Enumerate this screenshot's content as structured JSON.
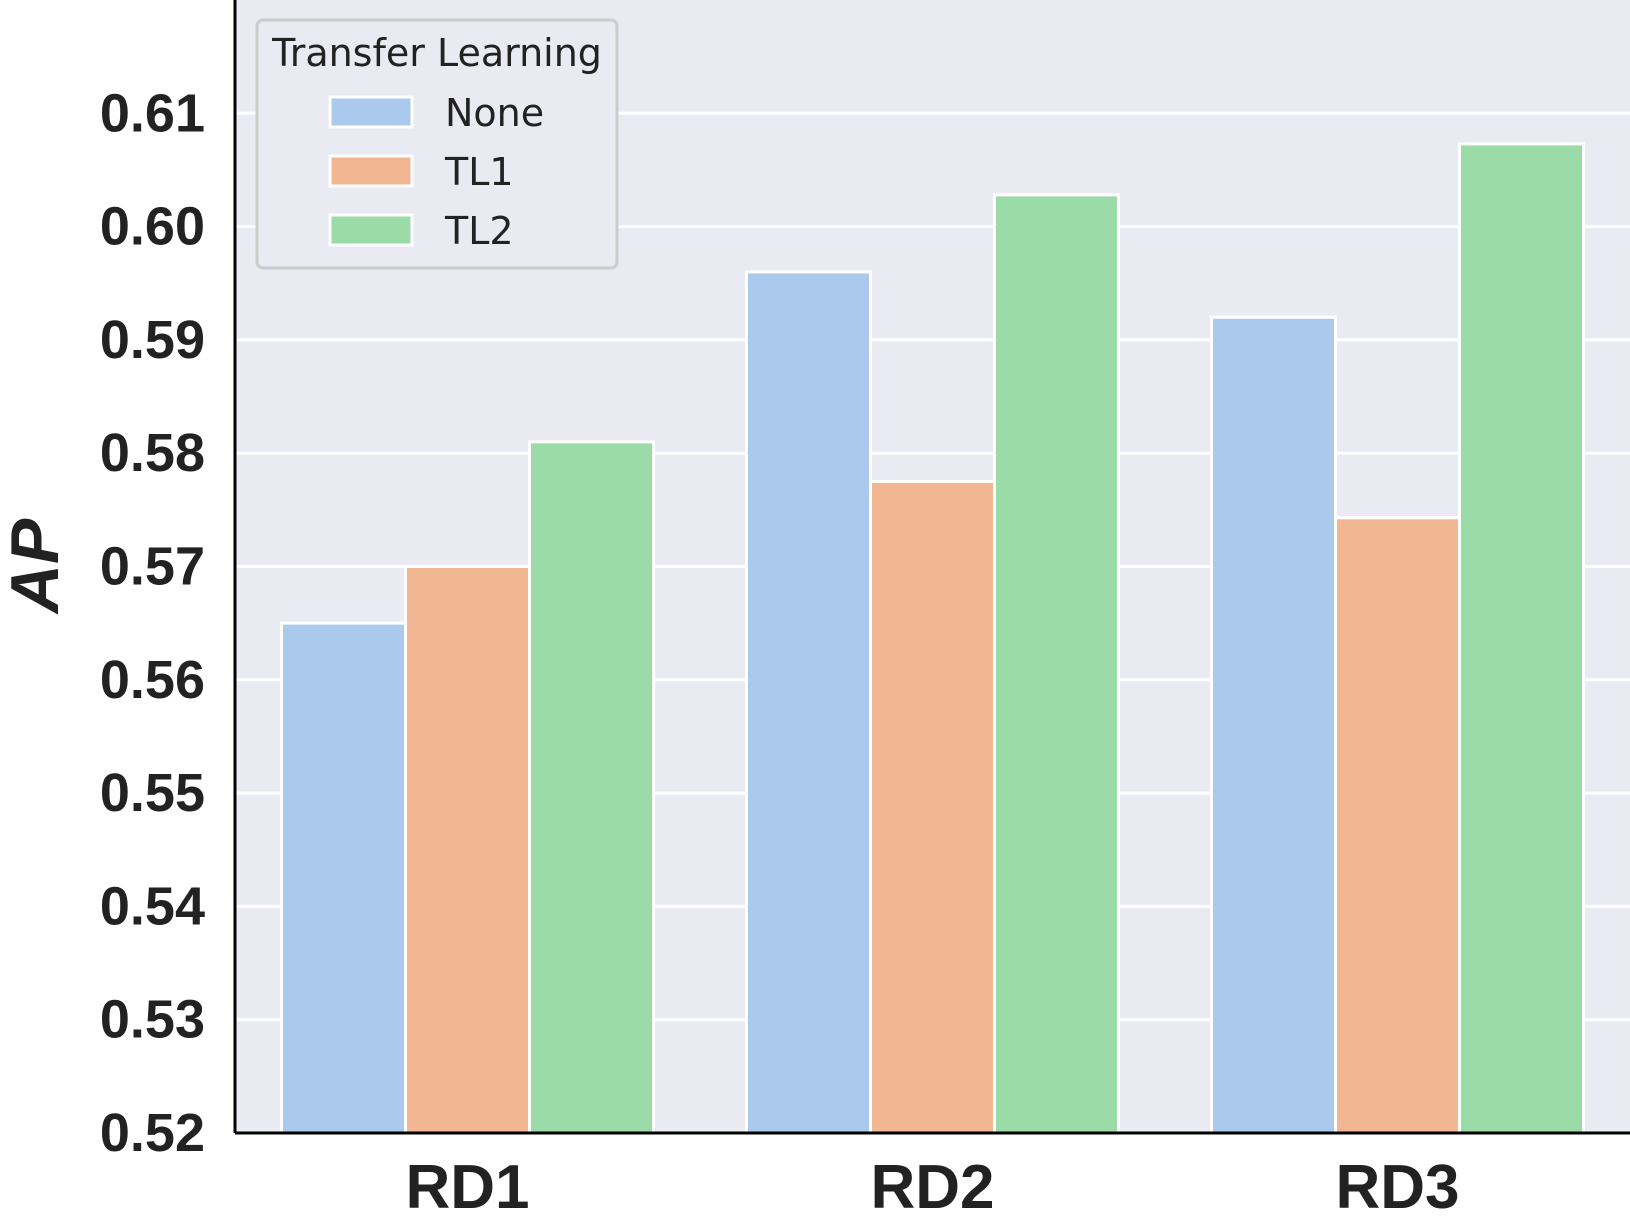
{
  "chart_data": {
    "type": "bar",
    "categories": [
      "RD1",
      "RD2",
      "RD3"
    ],
    "series": [
      {
        "name": "None",
        "values": [
          0.565,
          0.596,
          0.592
        ],
        "color": "#abc9ec"
      },
      {
        "name": "TL1",
        "values": [
          0.57,
          0.5775,
          0.5743
        ],
        "color": "#f0b792"
      },
      {
        "name": "TL2",
        "values": [
          0.581,
          0.6028,
          0.6073
        ],
        "color": "#9adba7"
      }
    ],
    "ylabel": "AP",
    "xlabel": "",
    "ylim": [
      0.52,
      0.62
    ],
    "yticks": [
      0.52,
      0.53,
      0.54,
      0.55,
      0.56,
      0.57,
      0.58,
      0.59,
      0.6,
      0.61
    ],
    "ytick_labels": [
      "0.52",
      "0.53",
      "0.54",
      "0.55",
      "0.56",
      "0.57",
      "0.58",
      "0.59",
      "0.60",
      "0.61"
    ],
    "legend": {
      "title": "Transfer Learning",
      "placement": "top-left"
    },
    "grid": true,
    "background_color": "#eaeaf2"
  }
}
